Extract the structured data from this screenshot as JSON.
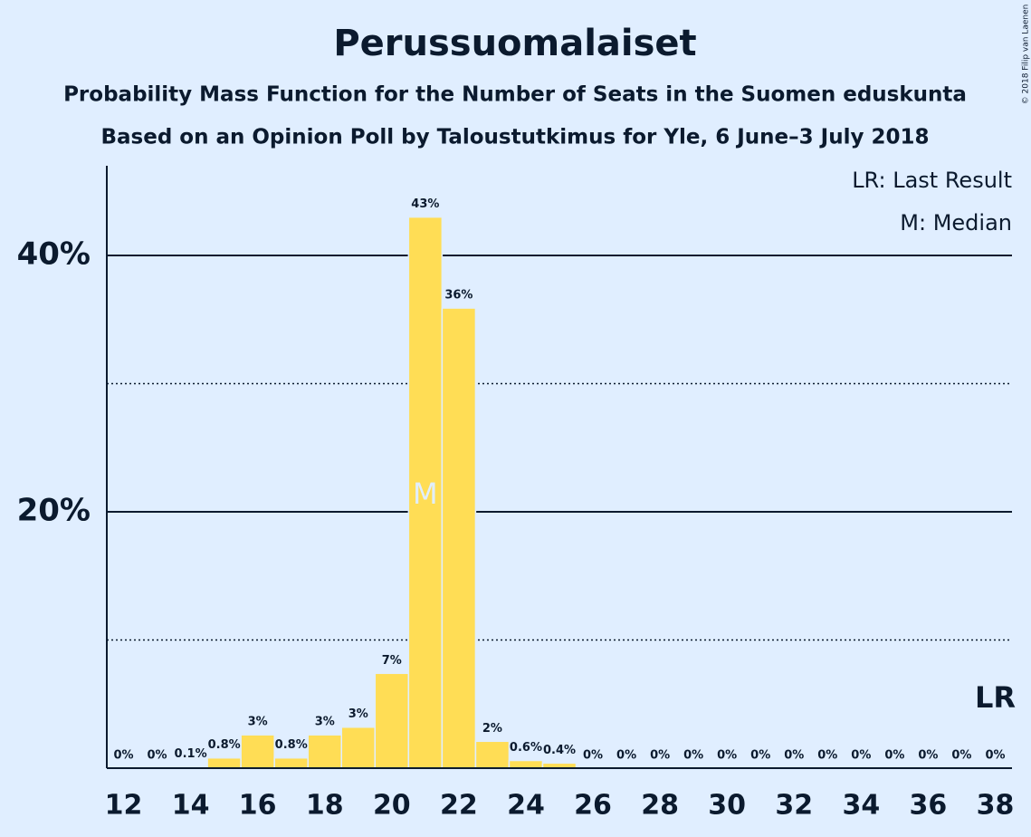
{
  "chart_data": {
    "type": "bar",
    "title": "Perussuomalaiset",
    "subtitle": "Probability Mass Function for the Number of Seats in the Suomen eduskunta",
    "subtitle2": "Based on an Opinion Poll by Taloustutkimus for Yle, 6 June–3 July 2018",
    "copyright": "© 2018 Filip van Laenen",
    "legend": [
      "LR: Last Result",
      "M: Median"
    ],
    "color": "#ffdd55",
    "x": [
      12,
      13,
      14,
      15,
      16,
      17,
      18,
      19,
      20,
      21,
      22,
      23,
      24,
      25,
      26,
      27,
      28,
      29,
      30,
      31,
      32,
      33,
      34,
      35,
      36,
      37,
      38
    ],
    "values": [
      0,
      0,
      0.1,
      0.8,
      2.6,
      0.8,
      2.6,
      3.2,
      7.4,
      43.0,
      35.9,
      2.1,
      0.6,
      0.4,
      0,
      0,
      0,
      0,
      0,
      0,
      0,
      0,
      0,
      0,
      0,
      0,
      0
    ],
    "value_labels": [
      "0%",
      "0%",
      "0.1%",
      "0.8%",
      "3%",
      "0.8%",
      "3%",
      "3%",
      "7%",
      "43%",
      "36%",
      "2%",
      "0.6%",
      "0.4%",
      "0%",
      "0%",
      "0%",
      "0%",
      "0%",
      "0%",
      "0%",
      "0%",
      "0%",
      "0%",
      "0%",
      "0%",
      "0%"
    ],
    "xlim": [
      11.5,
      38.5
    ],
    "xticks": [
      12,
      14,
      16,
      18,
      20,
      22,
      24,
      26,
      28,
      30,
      32,
      34,
      36,
      38
    ],
    "ylim": [
      0,
      47
    ],
    "yticks": [
      {
        "value": 20,
        "label": "20%"
      },
      {
        "value": 40,
        "label": "40%"
      }
    ],
    "minor_yticks": [
      10,
      30
    ],
    "grid": true,
    "median": 21,
    "median_label": "M",
    "last_result": 38,
    "last_result_label": "LR"
  }
}
